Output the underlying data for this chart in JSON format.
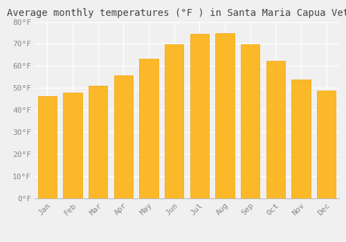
{
  "title": "Average monthly temperatures (°F ) in Santa Maria Capua Vetere",
  "months": [
    "Jan",
    "Feb",
    "Mar",
    "Apr",
    "May",
    "Jun",
    "Jul",
    "Aug",
    "Sep",
    "Oct",
    "Nov",
    "Dec"
  ],
  "values": [
    46.4,
    47.8,
    51.1,
    55.6,
    63.1,
    69.8,
    74.5,
    74.7,
    69.8,
    62.2,
    54.0,
    48.7
  ],
  "bar_color_face": "#FBB829",
  "bar_color_edge": "#F0A500",
  "ylim": [
    0,
    80
  ],
  "yticks": [
    0,
    10,
    20,
    30,
    40,
    50,
    60,
    70,
    80
  ],
  "ytick_labels": [
    "0°F",
    "10°F",
    "20°F",
    "30°F",
    "40°F",
    "50°F",
    "60°F",
    "70°F",
    "80°F"
  ],
  "background_color": "#f0f0f0",
  "grid_color": "#ffffff",
  "title_fontsize": 10,
  "tick_fontsize": 8,
  "font_family": "monospace"
}
